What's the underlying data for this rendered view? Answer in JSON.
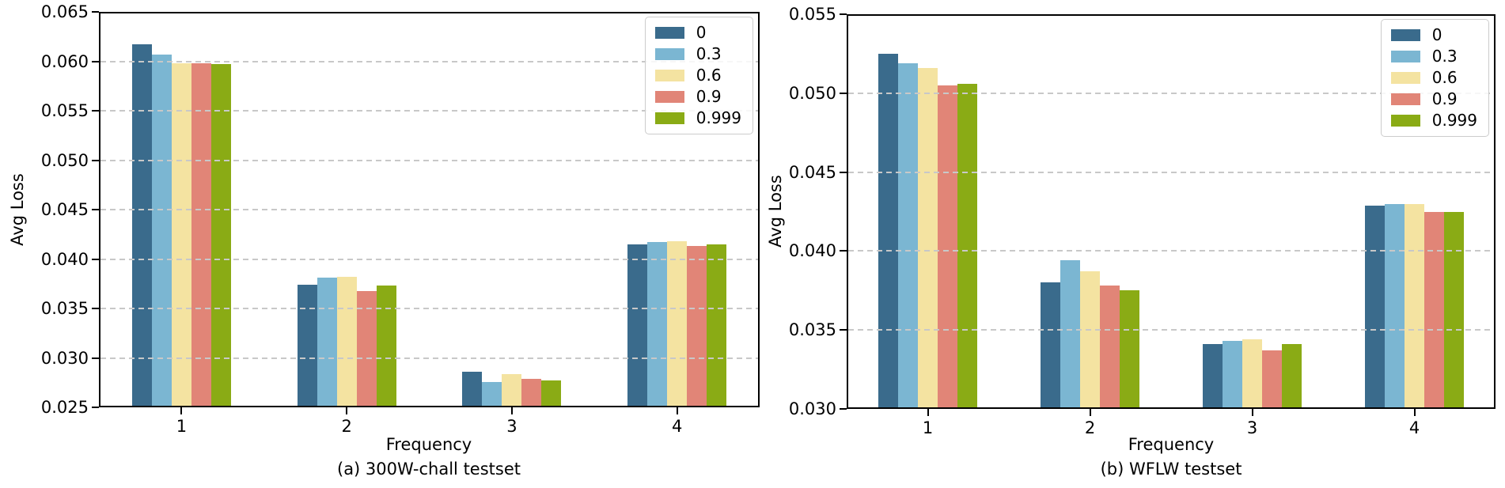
{
  "figure": {
    "background_color": "#ffffff",
    "axis_color": "#000000",
    "text_color": "#000000",
    "grid_color": "#c8c8c8",
    "legend_border_color": "#cccccc",
    "series_colors": [
      "#3a6b8c",
      "#7bb6d2",
      "#f4e3a1",
      "#e18577",
      "#8aab15"
    ],
    "legend_labels": [
      "0",
      "0.3",
      "0.6",
      "0.9",
      "0.999"
    ]
  },
  "chart_data": [
    {
      "type": "bar",
      "title": "(a) 300W-chall testset",
      "xlabel": "Frequency",
      "ylabel": "Avg Loss",
      "categories": [
        "1",
        "2",
        "3",
        "4"
      ],
      "ylim": [
        0.025,
        0.065
      ],
      "yticks": [
        "0.065",
        "0.060",
        "0.055",
        "0.050",
        "0.045",
        "0.040",
        "0.035",
        "0.030",
        "0.025"
      ],
      "grid": "horizontal dashed",
      "legend_position": "upper right",
      "series": [
        {
          "name": "0",
          "values": [
            0.0617,
            0.0374,
            0.0286,
            0.0415
          ]
        },
        {
          "name": "0.3",
          "values": [
            0.0607,
            0.0381,
            0.0276,
            0.0417
          ]
        },
        {
          "name": "0.6",
          "values": [
            0.0598,
            0.0382,
            0.0284,
            0.0418
          ]
        },
        {
          "name": "0.9",
          "values": [
            0.0598,
            0.0368,
            0.0279,
            0.0413
          ]
        },
        {
          "name": "0.999",
          "values": [
            0.0597,
            0.0373,
            0.0277,
            0.0415
          ]
        }
      ]
    },
    {
      "type": "bar",
      "title": "(b) WFLW testset",
      "xlabel": "Frequency",
      "ylabel": "Avg Loss",
      "categories": [
        "1",
        "2",
        "3",
        "4"
      ],
      "ylim": [
        0.03,
        0.055
      ],
      "yticks": [
        "0.055",
        "0.050",
        "0.045",
        "0.040",
        "0.035",
        "0.030"
      ],
      "grid": "horizontal dashed",
      "legend_position": "upper right",
      "series": [
        {
          "name": "0",
          "values": [
            0.0525,
            0.038,
            0.0341,
            0.0429
          ]
        },
        {
          "name": "0.3",
          "values": [
            0.0519,
            0.0394,
            0.0343,
            0.043
          ]
        },
        {
          "name": "0.6",
          "values": [
            0.0516,
            0.0387,
            0.0344,
            0.043
          ]
        },
        {
          "name": "0.9",
          "values": [
            0.0505,
            0.0378,
            0.0337,
            0.0425
          ]
        },
        {
          "name": "0.999",
          "values": [
            0.0506,
            0.0375,
            0.0341,
            0.0425
          ]
        }
      ]
    }
  ]
}
